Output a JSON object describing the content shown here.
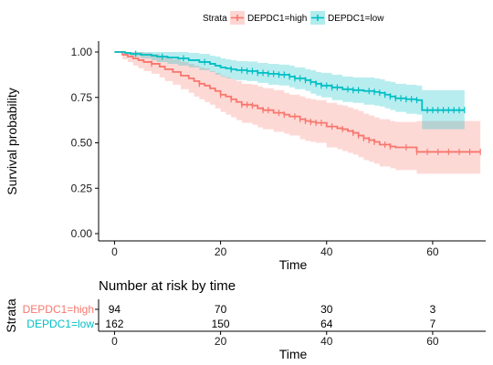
{
  "chart_data": [
    {
      "type": "line",
      "subtype": "kaplan-meier",
      "xlabel": "Time",
      "ylabel": "Survival probability",
      "xlim": [
        -3,
        70
      ],
      "ylim": [
        0,
        1
      ],
      "x_ticks": [
        0,
        20,
        40,
        60
      ],
      "y_ticks": [
        0,
        0.25,
        0.5,
        0.75,
        1.0
      ],
      "y_tick_labels": [
        "0.00",
        "0.25",
        "0.50",
        "0.75",
        "1.00"
      ],
      "grid": false,
      "legend": {
        "title": "Strata",
        "position": "top",
        "entries": [
          "DEPDC1=high",
          "DEPDC1=low"
        ]
      },
      "series": [
        {
          "name": "DEPDC1=high",
          "color": "#F8766D",
          "ci_color": "#F8766D",
          "x": [
            0,
            1.5,
            2.5,
            3.5,
            4.5,
            5.5,
            7,
            8.5,
            9.5,
            11,
            12.5,
            14,
            15,
            16,
            17,
            18,
            19,
            20,
            21,
            22,
            23,
            24,
            26,
            27,
            28,
            30,
            32,
            33,
            35,
            36,
            37,
            38,
            40,
            42,
            43,
            44,
            45,
            46,
            47,
            48,
            49,
            50,
            52,
            53,
            57,
            69
          ],
          "y": [
            1.0,
            0.985,
            0.975,
            0.965,
            0.955,
            0.945,
            0.935,
            0.92,
            0.905,
            0.89,
            0.87,
            0.855,
            0.84,
            0.825,
            0.815,
            0.8,
            0.785,
            0.765,
            0.755,
            0.74,
            0.725,
            0.71,
            0.705,
            0.69,
            0.68,
            0.665,
            0.655,
            0.645,
            0.63,
            0.62,
            0.615,
            0.61,
            0.59,
            0.58,
            0.575,
            0.565,
            0.555,
            0.54,
            0.525,
            0.515,
            0.505,
            0.49,
            0.48,
            0.475,
            0.45,
            0.45
          ],
          "ci_upper": [
            1.0,
            1.0,
            1.0,
            1.0,
            1.0,
            0.995,
            0.99,
            0.98,
            0.97,
            0.96,
            0.945,
            0.935,
            0.925,
            0.915,
            0.91,
            0.895,
            0.885,
            0.87,
            0.86,
            0.85,
            0.84,
            0.825,
            0.82,
            0.81,
            0.8,
            0.79,
            0.775,
            0.765,
            0.755,
            0.745,
            0.74,
            0.735,
            0.72,
            0.71,
            0.705,
            0.695,
            0.685,
            0.675,
            0.66,
            0.65,
            0.64,
            0.63,
            0.62,
            0.615,
            0.62,
            0.62
          ],
          "ci_lower": [
            1.0,
            0.96,
            0.945,
            0.925,
            0.91,
            0.895,
            0.88,
            0.86,
            0.84,
            0.82,
            0.795,
            0.775,
            0.755,
            0.74,
            0.725,
            0.71,
            0.69,
            0.67,
            0.655,
            0.64,
            0.625,
            0.61,
            0.6,
            0.585,
            0.575,
            0.56,
            0.55,
            0.54,
            0.52,
            0.51,
            0.505,
            0.5,
            0.475,
            0.465,
            0.455,
            0.445,
            0.435,
            0.42,
            0.405,
            0.395,
            0.385,
            0.37,
            0.36,
            0.35,
            0.33,
            0.33
          ],
          "censor_times": [
            7,
            16,
            20,
            22,
            24,
            25,
            26,
            28,
            29,
            31,
            32,
            34,
            35,
            36,
            37,
            38,
            39,
            41,
            43,
            45,
            46,
            47,
            48,
            49,
            51,
            52,
            55,
            57,
            59,
            61,
            63,
            65,
            67,
            69
          ]
        },
        {
          "name": "DEPDC1=low",
          "color": "#00BFC4",
          "ci_color": "#00BFC4",
          "x": [
            0,
            2,
            3,
            5,
            7,
            8,
            10,
            12,
            14,
            16,
            18,
            19,
            20,
            21,
            22,
            23,
            25,
            27,
            29,
            31,
            33,
            34,
            36,
            37,
            38,
            39,
            41,
            43,
            45,
            47,
            49,
            50,
            51,
            52,
            53,
            55,
            57,
            58,
            59,
            62,
            66
          ],
          "y": [
            1.0,
            0.995,
            0.99,
            0.985,
            0.98,
            0.975,
            0.97,
            0.965,
            0.955,
            0.945,
            0.935,
            0.925,
            0.915,
            0.91,
            0.905,
            0.9,
            0.895,
            0.885,
            0.88,
            0.875,
            0.865,
            0.855,
            0.845,
            0.835,
            0.825,
            0.815,
            0.805,
            0.795,
            0.79,
            0.785,
            0.78,
            0.775,
            0.765,
            0.755,
            0.745,
            0.74,
            0.735,
            0.68,
            0.68,
            0.68,
            0.68
          ],
          "ci_upper": [
            1.0,
            1.0,
            1.0,
            1.0,
            1.0,
            1.0,
            1.0,
            1.0,
            0.995,
            0.99,
            0.98,
            0.975,
            0.965,
            0.96,
            0.955,
            0.95,
            0.948,
            0.94,
            0.935,
            0.93,
            0.925,
            0.915,
            0.905,
            0.9,
            0.89,
            0.885,
            0.875,
            0.865,
            0.86,
            0.86,
            0.855,
            0.85,
            0.84,
            0.835,
            0.825,
            0.82,
            0.815,
            0.79,
            0.79,
            0.79,
            0.79
          ],
          "ci_lower": [
            1.0,
            0.985,
            0.975,
            0.965,
            0.955,
            0.945,
            0.935,
            0.925,
            0.915,
            0.9,
            0.89,
            0.875,
            0.865,
            0.855,
            0.85,
            0.845,
            0.84,
            0.83,
            0.82,
            0.815,
            0.805,
            0.795,
            0.785,
            0.77,
            0.76,
            0.75,
            0.735,
            0.725,
            0.72,
            0.71,
            0.705,
            0.7,
            0.69,
            0.68,
            0.67,
            0.66,
            0.655,
            0.575,
            0.575,
            0.575,
            0.575
          ],
          "censor_times": [
            4,
            9,
            13,
            17,
            22,
            24,
            25,
            26,
            27,
            28,
            29,
            30,
            31,
            32,
            33,
            34,
            35,
            36,
            37,
            38,
            39,
            40,
            41,
            42,
            44,
            45,
            46,
            48,
            49,
            50,
            51,
            52,
            53,
            54,
            55,
            56,
            57,
            59,
            60,
            61,
            62,
            63,
            64,
            65,
            66
          ]
        }
      ]
    },
    {
      "type": "table",
      "title": "Number at risk by time",
      "xlabel": "Time",
      "ylabel": "Strata",
      "xlim": [
        -3,
        70
      ],
      "x_ticks": [
        0,
        20,
        40,
        60
      ],
      "rows": [
        {
          "name": "DEPDC1=high",
          "color": "#F8766D",
          "values": [
            "94",
            "70",
            "30",
            "3"
          ]
        },
        {
          "name": "DEPDC1=low",
          "color": "#00BFC4",
          "values": [
            "162",
            "150",
            "64",
            "7"
          ]
        }
      ]
    }
  ]
}
